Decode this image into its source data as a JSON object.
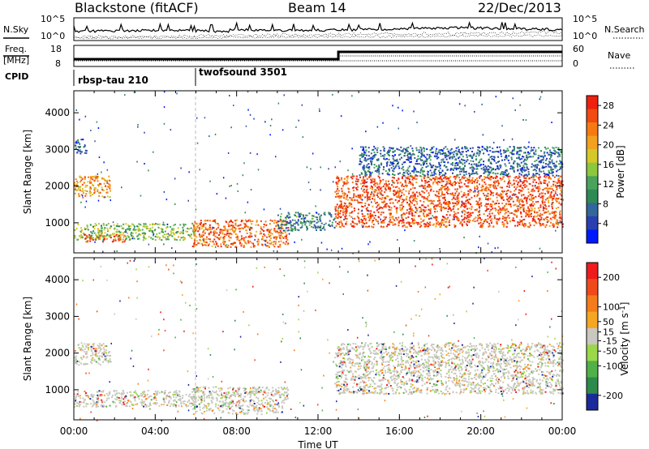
{
  "header": {
    "station": "Blackstone (fitACF)",
    "beam": "Beam 14",
    "date": "22/Dec/2013"
  },
  "noise_panel": {
    "left_label": "N.Sky",
    "right_label": "N.Search",
    "left_ticks": [
      "10^5",
      "10^0"
    ],
    "right_ticks": [
      "10^5",
      "10^0"
    ]
  },
  "freq_panel": {
    "left_label_1": "Freq.",
    "left_label_2": "[MHz]",
    "left_ticks": [
      "18",
      "8"
    ],
    "right_label": "Nave",
    "right_ticks": [
      "60",
      "0"
    ]
  },
  "cpid_panel": {
    "label": "CPID",
    "programs": [
      {
        "name": "rbsp-tau 210",
        "start": "00:00"
      },
      {
        "name": "twofsound 3501",
        "start": "06:00"
      }
    ]
  },
  "chart_data": [
    {
      "type": "heatmap",
      "title": "",
      "xlabel": "",
      "ylabel": "Slant Range [km]",
      "x_ticks": [
        "00:00",
        "04:00",
        "08:00",
        "12:00",
        "16:00",
        "20:00",
        "00:00"
      ],
      "y_ticks": [
        1000,
        2000,
        3000,
        4000
      ],
      "xlim_hours": [
        0,
        24
      ],
      "ylim_km": [
        180,
        4600
      ],
      "colorbar": {
        "label": "Power [dB]",
        "ticks": [
          4,
          8,
          12,
          16,
          20,
          24,
          28
        ],
        "range": [
          0,
          30
        ],
        "colors": [
          "#0018ff",
          "#2a3fb0",
          "#33669a",
          "#2d8a55",
          "#4aa35a",
          "#8cc83e",
          "#d4c82a",
          "#f2a020",
          "#f67a12",
          "#f24a10",
          "#ee2010"
        ]
      },
      "echo_regions": [
        {
          "t_start": 0.0,
          "t_end": 1.8,
          "range_km": [
            1700,
            2300
          ],
          "value_db": 22
        },
        {
          "t_start": 0.0,
          "t_end": 0.6,
          "range_km": [
            2900,
            3300
          ],
          "value_db": 6
        },
        {
          "t_start": 0.0,
          "t_end": 6.0,
          "range_km": [
            550,
            1000
          ],
          "value_db": 14
        },
        {
          "t_start": 0.5,
          "t_end": 2.5,
          "range_km": [
            500,
            700
          ],
          "value_db": 26
        },
        {
          "t_start": 5.8,
          "t_end": 10.5,
          "range_km": [
            350,
            1100
          ],
          "value_db": 25
        },
        {
          "t_start": 10.0,
          "t_end": 12.8,
          "range_km": [
            800,
            1300
          ],
          "value_db": 8
        },
        {
          "t_start": 12.8,
          "t_end": 24.0,
          "range_km": [
            900,
            2300
          ],
          "value_db": 27
        },
        {
          "t_start": 14.0,
          "t_end": 24.0,
          "range_km": [
            2300,
            3100
          ],
          "value_db": 6
        }
      ]
    },
    {
      "type": "heatmap",
      "title": "",
      "xlabel": "Time UT",
      "ylabel": "Slant Range [km]",
      "x_ticks": [
        "00:00",
        "04:00",
        "08:00",
        "12:00",
        "16:00",
        "20:00",
        "00:00"
      ],
      "y_ticks": [
        1000,
        2000,
        3000,
        4000
      ],
      "xlim_hours": [
        0,
        24
      ],
      "ylim_km": [
        180,
        4600
      ],
      "colorbar": {
        "label": "Velocity [m s^-1]",
        "ticks": [
          200,
          100,
          50,
          15,
          -15,
          -50,
          -100,
          -200
        ],
        "range": [
          -250,
          250
        ],
        "colors": [
          "#1a2a9a",
          "#2e8a4a",
          "#52b048",
          "#9ad84a",
          "#c8c8c0",
          "#f5a623",
          "#f57c1a",
          "#f04a1a",
          "#ee1c1c"
        ]
      },
      "echo_regions": [
        {
          "t_start": 0.0,
          "t_end": 1.8,
          "range_km": [
            1700,
            2300
          ],
          "value_ms": 0
        },
        {
          "t_start": 0.0,
          "t_end": 6.0,
          "range_km": [
            550,
            1000
          ],
          "value_ms": 0
        },
        {
          "t_start": 5.8,
          "t_end": 10.5,
          "range_km": [
            350,
            1100
          ],
          "value_ms": 0
        },
        {
          "t_start": 12.8,
          "t_end": 24.0,
          "range_km": [
            900,
            2300
          ],
          "value_ms": 0
        }
      ]
    }
  ]
}
